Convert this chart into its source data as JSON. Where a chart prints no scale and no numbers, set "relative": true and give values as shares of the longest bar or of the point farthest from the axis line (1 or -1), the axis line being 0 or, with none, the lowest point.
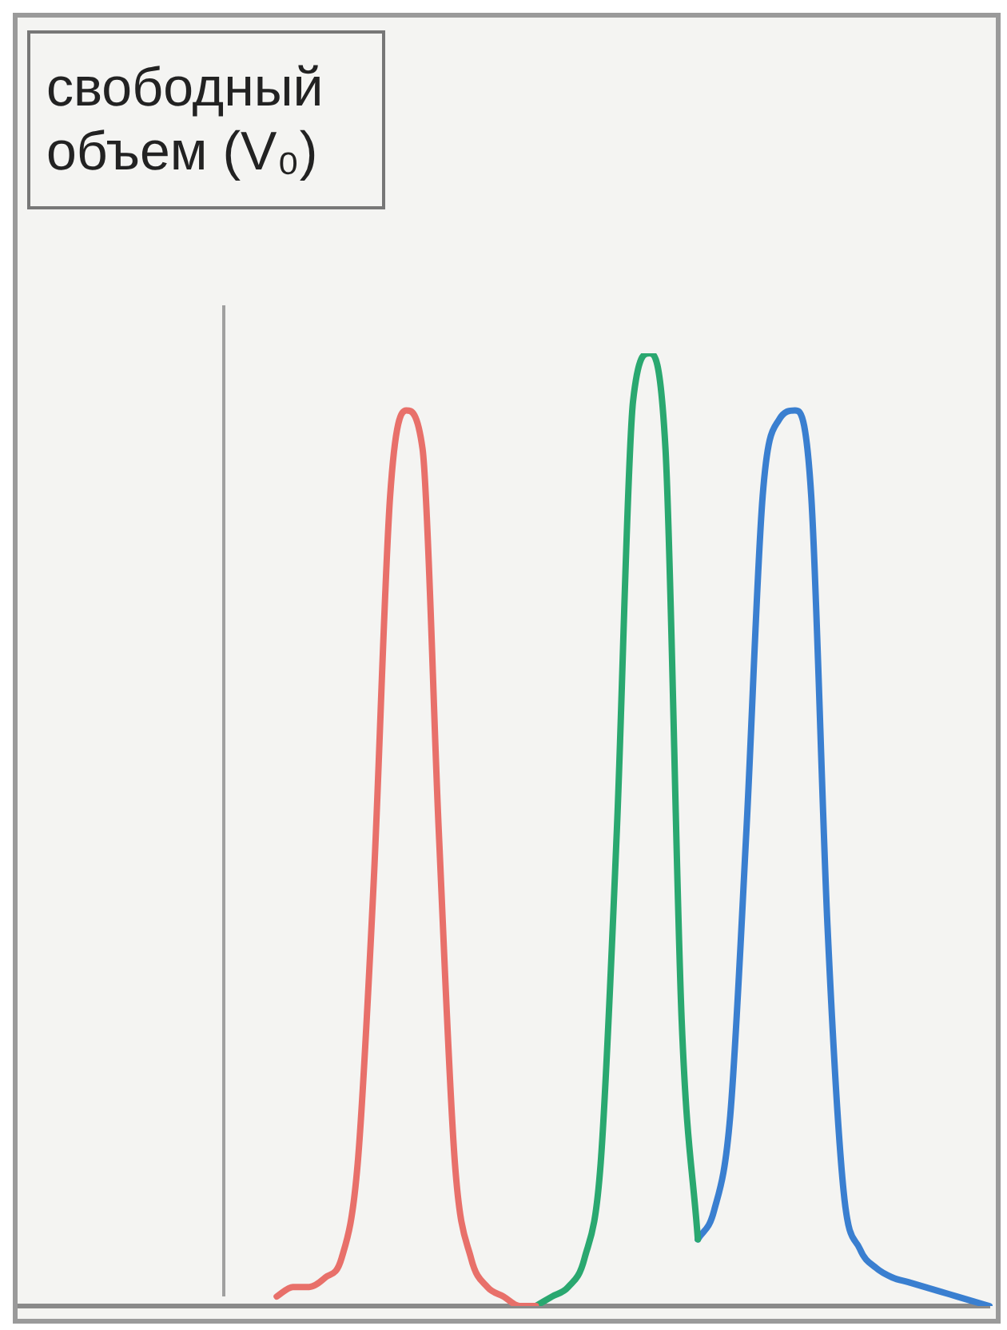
{
  "chart_data": {
    "type": "line",
    "relative": true,
    "grid": false,
    "legend": false,
    "marker": "none",
    "line_style": "solid",
    "tick_labels": false,
    "categories": [
      null,
      null,
      null,
      null,
      null,
      null,
      null,
      null,
      null,
      null,
      null,
      null,
      null,
      null,
      null,
      null,
      null,
      null,
      null,
      null,
      null,
      null,
      null,
      null,
      null,
      null,
      null,
      null,
      null,
      null,
      null,
      null,
      null,
      null,
      null,
      null,
      null,
      null,
      null,
      null,
      null,
      null,
      null,
      null,
      null,
      null,
      null,
      null,
      null,
      null,
      null,
      null,
      null,
      null,
      null,
      null,
      null,
      null,
      null,
      null,
      null
    ],
    "series": [
      {
        "color": "#e8706a",
        "values": [
          null,
          null,
          null,
          null,
          null,
          null,
          null,
          null,
          null,
          null,
          null,
          null,
          null,
          null,
          null,
          null,
          0.01,
          0.02,
          0.02,
          0.03,
          0.05,
          0.15,
          0.45,
          0.85,
          0.94,
          0.9,
          0.5,
          0.15,
          0.05,
          0.02,
          0.01,
          0.0,
          0.0,
          null,
          null,
          null,
          null,
          null,
          null,
          null,
          null,
          null,
          null,
          null,
          null,
          null,
          null,
          null,
          null,
          null,
          null,
          null,
          null,
          null,
          null,
          null,
          null,
          null,
          null,
          null,
          null
        ]
      },
      {
        "color": "#2aa870",
        "values": [
          null,
          null,
          null,
          null,
          null,
          null,
          null,
          null,
          null,
          null,
          null,
          null,
          null,
          null,
          null,
          null,
          null,
          null,
          null,
          null,
          null,
          null,
          null,
          null,
          null,
          null,
          null,
          null,
          null,
          null,
          null,
          null,
          0.0,
          0.01,
          0.02,
          0.05,
          0.15,
          0.5,
          0.95,
          1.0,
          0.9,
          0.3,
          0.07,
          null,
          null,
          null,
          null,
          null,
          null,
          null,
          null,
          null,
          null,
          null,
          null,
          null,
          null,
          null,
          null,
          null,
          null
        ]
      },
      {
        "color": "#3a7fd0",
        "values": [
          null,
          null,
          null,
          null,
          null,
          null,
          null,
          null,
          null,
          null,
          null,
          null,
          null,
          null,
          null,
          null,
          null,
          null,
          null,
          null,
          null,
          null,
          null,
          null,
          null,
          null,
          null,
          null,
          null,
          null,
          null,
          null,
          null,
          null,
          null,
          null,
          null,
          null,
          null,
          null,
          null,
          null,
          0.07,
          0.1,
          0.2,
          0.5,
          0.85,
          0.93,
          0.94,
          0.85,
          0.4,
          0.12,
          0.06,
          0.04,
          0.03,
          0.025,
          0.02,
          0.015,
          0.01,
          0.005,
          0.0
        ]
      }
    ],
    "annotations": [
      "свободный объем (V₀)"
    ]
  }
}
